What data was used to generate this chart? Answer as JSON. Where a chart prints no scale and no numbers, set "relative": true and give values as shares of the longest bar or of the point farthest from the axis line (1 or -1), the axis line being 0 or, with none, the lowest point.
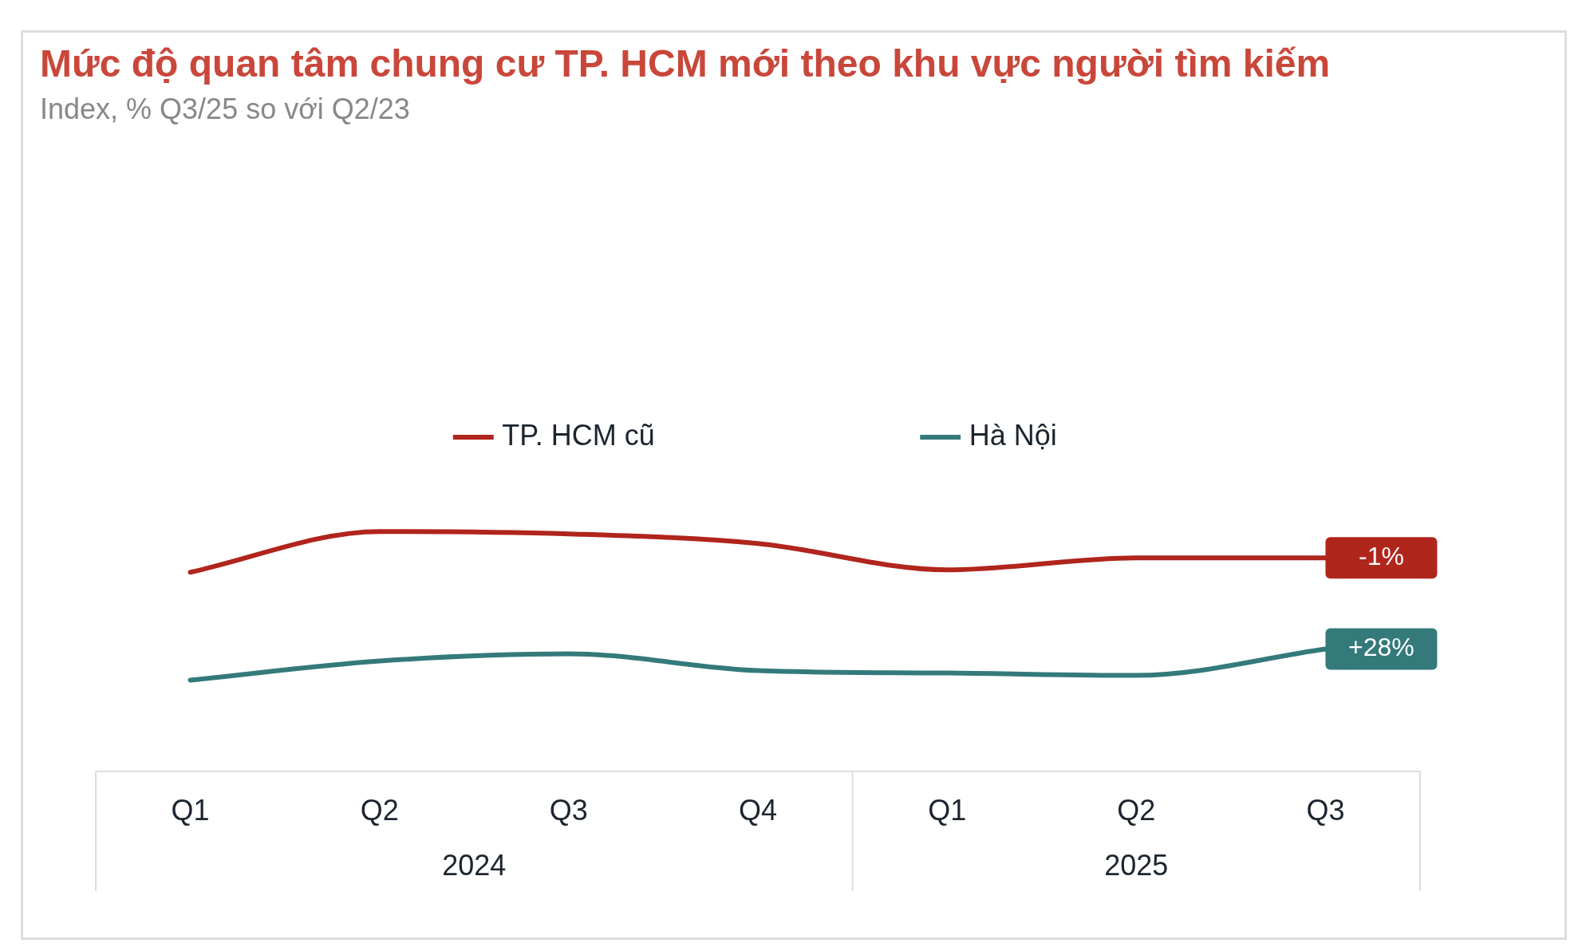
{
  "chart_data": {
    "type": "line",
    "title": "Mức độ quan tâm chung cư TP. HCM mới theo khu vực người tìm kiếm",
    "subtitle": "Index, % Q3/25 so với Q2/23",
    "relative": true,
    "legend": "top",
    "marker": "none",
    "line_style": "solid",
    "grid": false,
    "categories": [
      "Q1",
      "Q2",
      "Q3",
      "Q4",
      "Q1",
      "Q2",
      "Q3"
    ],
    "annotations": [
      "2024",
      "2025",
      "-1%",
      "+28%"
    ],
    "series": [
      {
        "name": "TP. HCM cũ",
        "color": "#b0251c",
        "values": [
          0.83,
          1,
          0.99,
          0.95,
          0.84,
          0.89,
          0.89
        ]
      },
      {
        "name": "Hà Nội",
        "color": "#347a7b",
        "values": [
          0.38,
          0.46,
          0.49,
          0.42,
          0.41,
          0.4,
          0.51
        ]
      }
    ]
  }
}
